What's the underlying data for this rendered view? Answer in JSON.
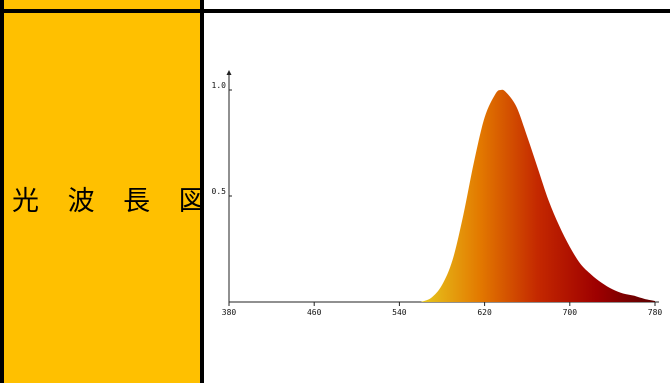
{
  "label_cell": {
    "text": "光 波 長 図",
    "background": "#ffc000"
  },
  "chart_data": {
    "type": "area",
    "title": "",
    "xlabel": "",
    "ylabel": "",
    "x_ticks": [
      380,
      460,
      540,
      620,
      700,
      780
    ],
    "x_tick_labels": [
      "380",
      "460",
      "540",
      "620",
      "700",
      "780"
    ],
    "y_ticks": [
      0.5,
      1.0
    ],
    "y_tick_labels": [
      "0.5",
      "1.0"
    ],
    "xlim": [
      380,
      780
    ],
    "ylim": [
      0,
      1.0
    ],
    "grid": false,
    "gradient_colors": [
      "#e6c81e",
      "#e37a00",
      "#c42800",
      "#9e0000",
      "#5a0000"
    ],
    "x": [
      560,
      570,
      580,
      590,
      600,
      610,
      620,
      630,
      635,
      640,
      650,
      660,
      670,
      680,
      690,
      700,
      710,
      720,
      730,
      740,
      750,
      760,
      770,
      780
    ],
    "y": [
      0.0,
      0.02,
      0.08,
      0.2,
      0.41,
      0.66,
      0.87,
      0.98,
      1.0,
      0.99,
      0.92,
      0.78,
      0.63,
      0.48,
      0.36,
      0.26,
      0.18,
      0.13,
      0.09,
      0.06,
      0.04,
      0.03,
      0.015,
      0.005
    ]
  }
}
